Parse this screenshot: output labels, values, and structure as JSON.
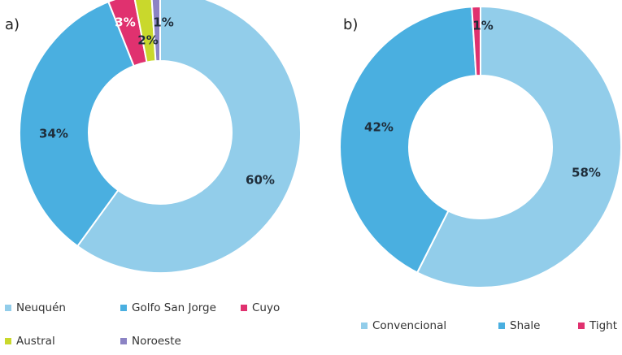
{
  "chart_data": [
    {
      "type": "pie",
      "panel_label": "a)",
      "donut": true,
      "categories": [
        "Neuquén",
        "Golfo San Jorge",
        "Cuyo",
        "Austral",
        "Noroeste"
      ],
      "values": [
        60,
        34,
        3,
        2,
        1
      ],
      "data_labels": [
        "60%",
        "34%",
        "3%",
        "2%",
        "1%"
      ],
      "colors": [
        "#92cdea",
        "#4aafe0",
        "#e0316f",
        "#c9d82c",
        "#8b83c4"
      ],
      "label_colors": [
        "#1f2d3a",
        "#1f2d3a",
        "#ffffff",
        "#1f2d3a",
        "#1f2d3a"
      ],
      "legend": {
        "placement": "bottom",
        "rows": [
          [
            "Neuquén",
            "Golfo San Jorge",
            "Cuyo"
          ],
          [
            "Austral",
            "Noroeste"
          ]
        ]
      }
    },
    {
      "type": "pie",
      "panel_label": "b)",
      "donut": true,
      "categories": [
        "Convencional",
        "Shale",
        "Tight"
      ],
      "values": [
        58,
        42,
        1
      ],
      "data_labels": [
        "58%",
        "42%",
        "1%"
      ],
      "colors": [
        "#92cdea",
        "#4aafe0",
        "#e0316f"
      ],
      "label_colors": [
        "#1f2d3a",
        "#1f2d3a",
        "#1f2d3a"
      ],
      "legend": {
        "placement": "bottom",
        "rows": [
          [
            "Convencional",
            "Shale",
            "Tight"
          ]
        ]
      }
    }
  ]
}
